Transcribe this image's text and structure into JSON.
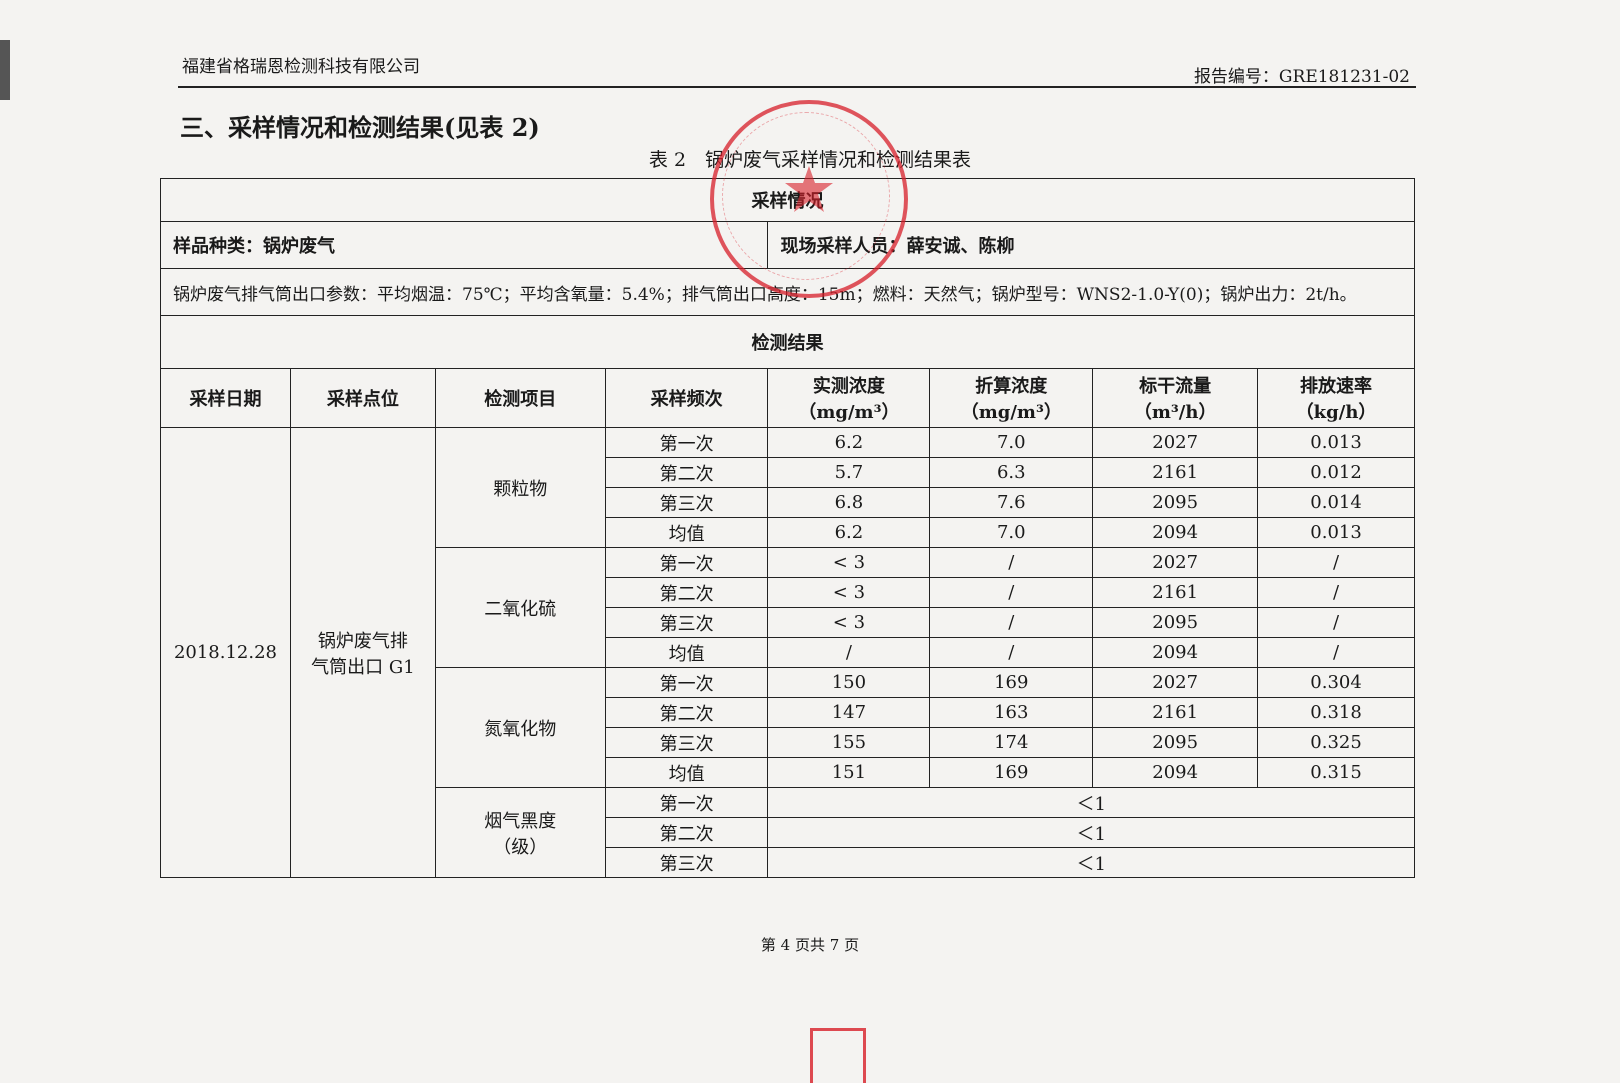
{
  "header": {
    "company": "福建省格瑞恩检测科技有限公司",
    "report_no": "报告编号：GRE181231-02"
  },
  "section_title": "三、采样情况和检测结果(见表 2)",
  "table_caption": "表 2　锅炉废气采样情况和检测结果表",
  "sampling": {
    "title": "采样情况",
    "sample_type": "样品种类：锅炉废气",
    "staff": "现场采样人员：薛安诚、陈柳",
    "params": "锅炉废气排气筒出口参数：平均烟温：75℃；平均含氧量：5.4%；排气筒出口高度：15m；燃料：天然气；锅炉型号：WNS2-1.0-Y(0)；锅炉出力：2t/h。"
  },
  "results": {
    "title": "检测结果",
    "headers": [
      "采样日期",
      "采样点位",
      "检测项目",
      "采样频次",
      "实测浓度",
      "折算浓度",
      "标干流量",
      "排放速率"
    ],
    "units": [
      "",
      "",
      "",
      "",
      "（mg/m³）",
      "（mg/m³）",
      "（m³/h）",
      "（kg/h）"
    ],
    "date": "2018.12.28",
    "location": "锅炉废气排气筒出口 G1",
    "groups": [
      {
        "item": "颗粒物",
        "rows": [
          [
            "第一次",
            "6.2",
            "7.0",
            "2027",
            "0.013"
          ],
          [
            "第二次",
            "5.7",
            "6.3",
            "2161",
            "0.012"
          ],
          [
            "第三次",
            "6.8",
            "7.6",
            "2095",
            "0.014"
          ],
          [
            "均值",
            "6.2",
            "7.0",
            "2094",
            "0.013"
          ]
        ]
      },
      {
        "item": "二氧化硫",
        "rows": [
          [
            "第一次",
            "< 3",
            "/",
            "2027",
            "/"
          ],
          [
            "第二次",
            "< 3",
            "/",
            "2161",
            "/"
          ],
          [
            "第三次",
            "< 3",
            "/",
            "2095",
            "/"
          ],
          [
            "均值",
            "/",
            "/",
            "2094",
            "/"
          ]
        ]
      },
      {
        "item": "氮氧化物",
        "rows": [
          [
            "第一次",
            "150",
            "169",
            "2027",
            "0.304"
          ],
          [
            "第二次",
            "147",
            "163",
            "2161",
            "0.318"
          ],
          [
            "第三次",
            "155",
            "174",
            "2095",
            "0.325"
          ],
          [
            "均值",
            "151",
            "169",
            "2094",
            "0.315"
          ]
        ]
      }
    ],
    "smoke": {
      "item": "烟气黑度（级）",
      "rows": [
        [
          "第一次",
          "＜1"
        ],
        [
          "第二次",
          "＜1"
        ],
        [
          "第三次",
          "＜1"
        ]
      ]
    }
  },
  "footer": "第 4 页共 7 页",
  "colors": {
    "stamp": "#d71e28"
  }
}
